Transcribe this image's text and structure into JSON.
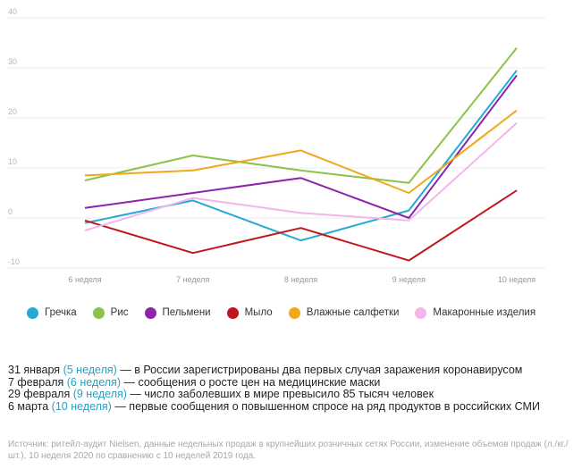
{
  "chart_data": {
    "type": "line",
    "categories": [
      "6 неделя",
      "7 неделя",
      "8 неделя",
      "9 неделя",
      "10 неделя"
    ],
    "ylim": [
      -10,
      40
    ],
    "yticks": [
      "40",
      "30",
      "20",
      "10",
      "0",
      "-10"
    ],
    "grid": true,
    "legend_position": "bottom",
    "series": [
      {
        "name": "Гречка",
        "color": "#26a9d6",
        "values": [
          -1,
          3.5,
          -4.5,
          1.5,
          29.5
        ]
      },
      {
        "name": "Рис",
        "color": "#8bc34a",
        "values": [
          7.5,
          12.5,
          9.5,
          7,
          34
        ]
      },
      {
        "name": "Пельмени",
        "color": "#8e24aa",
        "values": [
          2,
          5,
          8,
          0,
          28.5
        ]
      },
      {
        "name": "Мыло",
        "color": "#c0161d",
        "values": [
          -0.5,
          -7,
          -2,
          -8.5,
          5.5
        ]
      },
      {
        "name": "Влажные салфетки",
        "color": "#f0a818",
        "values": [
          8.5,
          9.5,
          13.5,
          5,
          21.5
        ]
      },
      {
        "name": "Макаронные изделия",
        "color": "#f2b6ea",
        "values": [
          -2.5,
          4,
          1,
          -0.5,
          19
        ]
      }
    ]
  },
  "notes": [
    {
      "date": "31 января",
      "week": "(5 неделя)",
      "text": " — в России зарегистрированы два первых случая заражения коронавирусом"
    },
    {
      "date": "7 февраля",
      "week": "(6 неделя)",
      "text": " — сообщения о росте цен на медицинские маски"
    },
    {
      "date": "29 февраля",
      "week": "(9 неделя)",
      "text": " — число заболевших в мире превысило 85 тысяч человек"
    },
    {
      "date": "6 марта",
      "week": "(10 неделя)",
      "text": " — первые сообщения о повышенном спросе на ряд продуктов в российских СМИ"
    }
  ],
  "source": "Источник: ритейл-аудит Nielsen, данные недельных продаж в крупнейших розничных сетях России, изменение объемов продаж (л./кг./шт.), 10 неделя 2020 по сравнению с 10 неделей 2019 года."
}
